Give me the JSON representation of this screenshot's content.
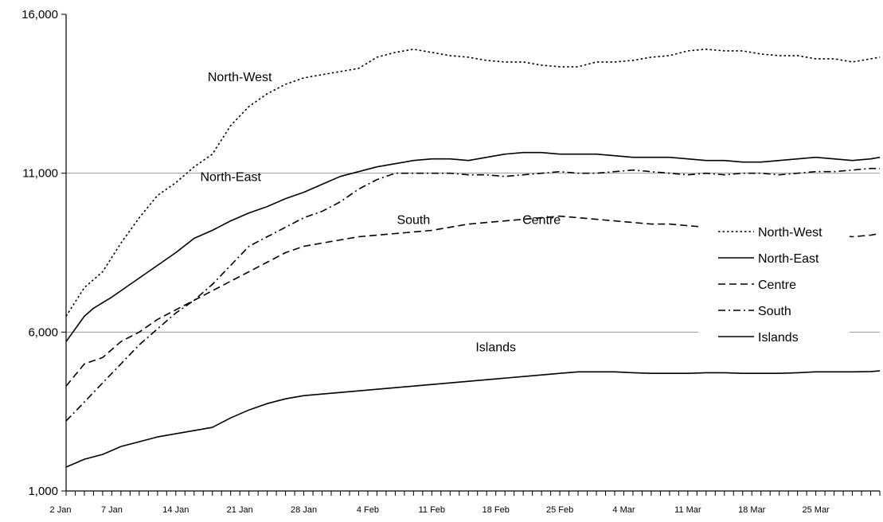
{
  "chart_data": {
    "type": "line",
    "title": "",
    "xlabel": "",
    "ylabel": "",
    "ylim": [
      1000,
      16000
    ],
    "y_ticks": [
      "1,000",
      "6,000",
      "11,000",
      "16,000"
    ],
    "y_tick_values": [
      1000,
      6000,
      11000,
      16000
    ],
    "gridlines_at": [
      6000,
      11000
    ],
    "x_tick_labels": [
      "2 Jan",
      "7 Jan",
      "14 Jan",
      "21 Jan",
      "28 Jan",
      "4 Feb",
      "11 Feb",
      "18 Feb",
      "25 Feb",
      "4 Mar",
      "11 Mar",
      "18 Mar",
      "25 Mar"
    ],
    "x_tick_days": [
      0,
      5,
      12,
      19,
      26,
      33,
      40,
      47,
      54,
      61,
      68,
      75,
      82
    ],
    "x_range_days": [
      0,
      89
    ],
    "legend_position": "right",
    "series": [
      {
        "name": "North-West",
        "style": "dotted",
        "x": [
          0,
          2,
          4,
          6,
          8,
          10,
          12,
          14,
          16,
          18,
          20,
          22,
          24,
          26,
          28,
          30,
          32,
          34,
          36,
          38,
          40,
          42,
          44,
          46,
          48,
          50,
          52,
          54,
          56,
          58,
          60,
          62,
          64,
          66,
          68,
          70,
          72,
          74,
          76,
          78,
          80,
          82,
          84,
          86,
          88,
          89
        ],
        "values": [
          6500,
          7400,
          7900,
          8800,
          9600,
          10300,
          10700,
          11200,
          11600,
          12500,
          13100,
          13500,
          13800,
          14000,
          14100,
          14200,
          14300,
          14650,
          14800,
          14900,
          14800,
          14700,
          14650,
          14550,
          14500,
          14500,
          14400,
          14350,
          14350,
          14500,
          14500,
          14550,
          14650,
          14700,
          14850,
          14900,
          14850,
          14850,
          14750,
          14700,
          14700,
          14600,
          14600,
          14500,
          14600,
          14650
        ]
      },
      {
        "name": "North-East",
        "style": "solid",
        "x": [
          0,
          1,
          2,
          3,
          5,
          7,
          10,
          12,
          14,
          16,
          18,
          20,
          22,
          24,
          26,
          28,
          30,
          32,
          34,
          36,
          38,
          40,
          42,
          44,
          46,
          48,
          50,
          52,
          54,
          56,
          58,
          60,
          62,
          64,
          66,
          68,
          70,
          72,
          74,
          76,
          78,
          80,
          82,
          84,
          86,
          88,
          89
        ],
        "values": [
          5700,
          6100,
          6500,
          6750,
          7100,
          7500,
          8100,
          8500,
          8950,
          9200,
          9500,
          9750,
          9950,
          10200,
          10400,
          10650,
          10900,
          11050,
          11200,
          11300,
          11400,
          11450,
          11450,
          11400,
          11500,
          11600,
          11650,
          11650,
          11600,
          11600,
          11600,
          11550,
          11500,
          11500,
          11500,
          11450,
          11400,
          11400,
          11350,
          11350,
          11400,
          11450,
          11500,
          11450,
          11400,
          11450,
          11500
        ]
      },
      {
        "name": "Centre",
        "style": "dashed",
        "x": [
          0,
          2,
          4,
          6,
          8,
          10,
          12,
          14,
          16,
          18,
          20,
          22,
          24,
          26,
          28,
          30,
          32,
          34,
          36,
          38,
          40,
          42,
          44,
          46,
          48,
          50,
          52,
          54,
          56,
          58,
          60,
          62,
          64,
          66,
          68,
          70,
          72,
          74,
          76,
          78,
          80,
          82,
          84,
          86,
          88,
          89
        ],
        "values": [
          4300,
          5000,
          5200,
          5700,
          6000,
          6400,
          6700,
          7000,
          7300,
          7600,
          7900,
          8200,
          8500,
          8700,
          8800,
          8900,
          9000,
          9050,
          9100,
          9150,
          9200,
          9300,
          9400,
          9450,
          9500,
          9550,
          9600,
          9650,
          9600,
          9550,
          9500,
          9450,
          9400,
          9400,
          9350,
          9300,
          9300,
          9300,
          9200,
          9200,
          9150,
          9100,
          9050,
          9000,
          9050,
          9100
        ]
      },
      {
        "name": "South",
        "style": "dashdot",
        "x": [
          0,
          2,
          4,
          6,
          8,
          10,
          12,
          14,
          16,
          18,
          20,
          22,
          24,
          26,
          28,
          30,
          32,
          34,
          36,
          38,
          40,
          42,
          44,
          46,
          48,
          50,
          52,
          54,
          56,
          58,
          60,
          62,
          64,
          66,
          68,
          70,
          72,
          74,
          76,
          78,
          80,
          82,
          84,
          86,
          88,
          89
        ],
        "values": [
          3200,
          3800,
          4400,
          5000,
          5600,
          6100,
          6600,
          7000,
          7500,
          8100,
          8700,
          9000,
          9300,
          9600,
          9800,
          10100,
          10500,
          10800,
          11000,
          11000,
          11000,
          11000,
          10950,
          10950,
          10900,
          10950,
          11000,
          11050,
          11000,
          11000,
          11050,
          11100,
          11050,
          11000,
          10950,
          11000,
          10950,
          11000,
          11000,
          10950,
          11000,
          11050,
          11050,
          11100,
          11150,
          11150
        ]
      },
      {
        "name": "Islands",
        "style": "solid",
        "x": [
          0,
          2,
          4,
          6,
          8,
          10,
          12,
          14,
          16,
          18,
          20,
          22,
          24,
          26,
          28,
          30,
          32,
          34,
          36,
          38,
          40,
          42,
          44,
          46,
          48,
          50,
          52,
          54,
          56,
          58,
          60,
          62,
          64,
          66,
          68,
          70,
          72,
          74,
          76,
          78,
          80,
          82,
          84,
          86,
          88,
          89
        ],
        "values": [
          1750,
          2000,
          2150,
          2400,
          2550,
          2700,
          2800,
          2900,
          3000,
          3300,
          3550,
          3750,
          3900,
          4000,
          4050,
          4100,
          4150,
          4200,
          4250,
          4300,
          4350,
          4400,
          4450,
          4500,
          4550,
          4600,
          4650,
          4700,
          4750,
          4750,
          4750,
          4720,
          4700,
          4700,
          4700,
          4720,
          4720,
          4700,
          4700,
          4700,
          4720,
          4750,
          4750,
          4750,
          4760,
          4780
        ]
      }
    ],
    "annotations": [
      {
        "text": "North-West",
        "series": "North-West"
      },
      {
        "text": "North-East",
        "series": "North-East"
      },
      {
        "text": "South",
        "series": "South"
      },
      {
        "text": "Centre",
        "series": "Centre"
      },
      {
        "text": "Islands",
        "series": "Islands"
      }
    ]
  }
}
